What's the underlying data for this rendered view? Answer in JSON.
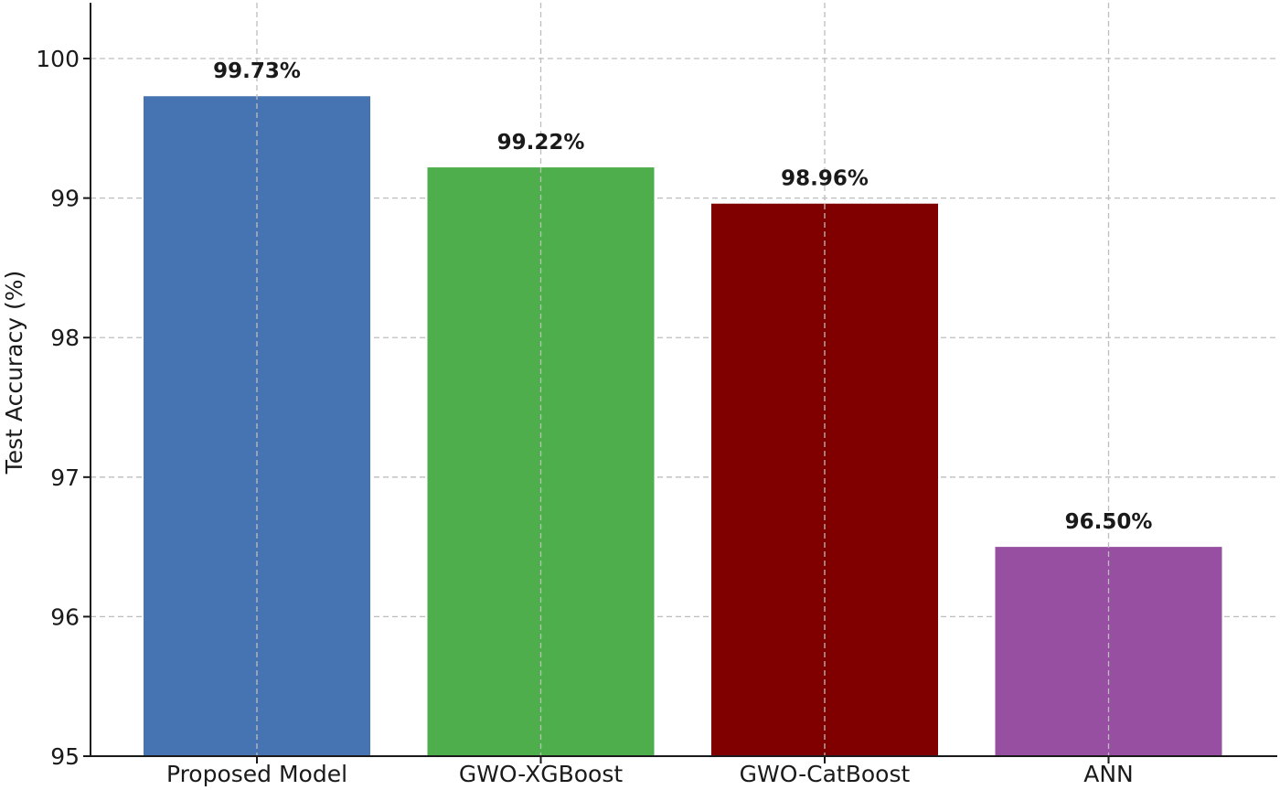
{
  "chart_data": {
    "type": "bar",
    "title": "",
    "xlabel": "",
    "ylabel": "Test Accuracy (%)",
    "categories": [
      "Proposed Model",
      "GWO-XGBoost",
      "GWO-CatBoost",
      "ANN"
    ],
    "values": [
      99.73,
      99.22,
      98.96,
      96.5
    ],
    "data_labels": [
      "99.73%",
      "99.22%",
      "98.96%",
      "96.50%"
    ],
    "colors": [
      "#4674b3",
      "#4fae4c",
      "#800000",
      "#974fa1"
    ],
    "ylim": [
      95,
      100.4
    ],
    "yticks": [
      95,
      96,
      97,
      98,
      99,
      100
    ],
    "ytick_labels": [
      "95",
      "96",
      "97",
      "98",
      "99",
      "100"
    ],
    "grid": true,
    "legend": "none"
  }
}
